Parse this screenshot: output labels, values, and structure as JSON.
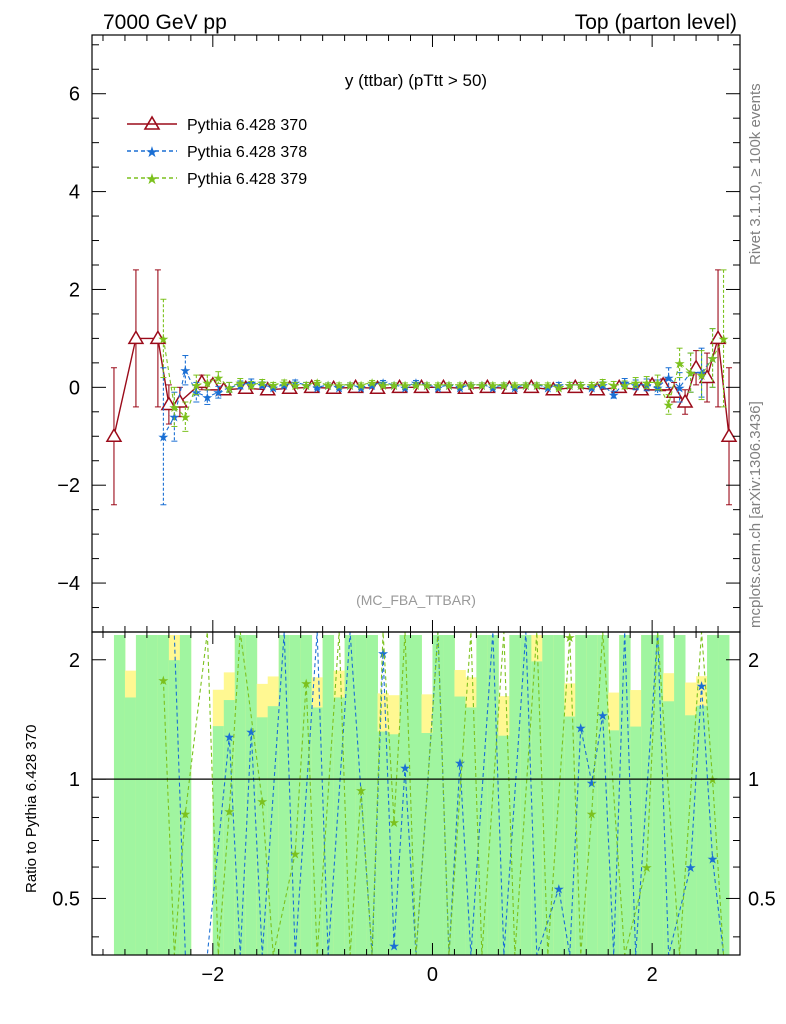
{
  "header": {
    "left": "7000 GeV pp",
    "right": "Top (parton level)"
  },
  "side": {
    "rivet": "Rivet 3.1.10, ≥ 100k events",
    "mcplots": "mcplots.cern.ch [arXiv:1306.3436]"
  },
  "chart_data": {
    "type": "line",
    "title": "y (ttbar) (pTtt > 50)",
    "watermark": "(MC_FBA_TTBAR)",
    "xlim": [
      -3.1,
      2.8
    ],
    "ylim": [
      -5,
      7.2
    ],
    "ratio_ylim": [
      0.36,
      2.35
    ],
    "ratio_ylabel": "Ratio to Pythia 6.428 370",
    "xticks": [
      -2,
      0,
      2
    ],
    "yticks": [
      -4,
      -2,
      0,
      2,
      4,
      6
    ],
    "ratio_yticks": [
      0.5,
      1,
      2
    ],
    "legend_position": "top-left",
    "colors": {
      "s370": "#9b0b1a",
      "s378": "#1a6fd4",
      "s379": "#7cc11e",
      "band_green": "#a0f5a0",
      "band_yellow": "#fff892"
    },
    "series": [
      {
        "name": "Pythia 6.428 370",
        "x": [
          -2.9,
          -2.7,
          -2.5,
          -2.4,
          -2.3,
          -2.1,
          -2.0,
          -1.9,
          -1.7,
          -1.5,
          -1.3,
          -1.1,
          -0.9,
          -0.7,
          -0.5,
          -0.3,
          -0.1,
          0.1,
          0.3,
          0.5,
          0.7,
          0.9,
          1.1,
          1.3,
          1.5,
          1.7,
          1.9,
          2.0,
          2.1,
          2.2,
          2.3,
          2.4,
          2.5,
          2.6,
          2.7
        ],
        "y": [
          -1.0,
          1.0,
          1.0,
          -0.35,
          -0.3,
          0.1,
          0.05,
          -0.05,
          -0.02,
          -0.05,
          -0.02,
          0.0,
          -0.02,
          0.0,
          -0.02,
          0.0,
          0.0,
          0.0,
          -0.02,
          0.0,
          -0.02,
          0.0,
          -0.05,
          0.0,
          -0.05,
          0.0,
          -0.05,
          0.05,
          0.05,
          -0.1,
          -0.3,
          0.4,
          0.2,
          1.0,
          -1.0
        ],
        "err": [
          1.4,
          1.4,
          1.4,
          0.4,
          0.3,
          0.15,
          0.1,
          0.08,
          0.05,
          0.05,
          0.05,
          0.05,
          0.04,
          0.04,
          0.04,
          0.04,
          0.04,
          0.04,
          0.04,
          0.04,
          0.04,
          0.04,
          0.05,
          0.05,
          0.05,
          0.06,
          0.08,
          0.1,
          0.12,
          0.2,
          0.25,
          0.35,
          0.5,
          1.4,
          1.4
        ]
      },
      {
        "name": "Pythia 6.428 378",
        "x": [
          -2.45,
          -2.35,
          -2.25,
          -2.15,
          -2.05,
          -1.95,
          -1.85,
          -1.75,
          -1.65,
          -1.55,
          -1.45,
          -1.35,
          -1.25,
          -1.15,
          -1.05,
          -0.95,
          -0.85,
          -0.75,
          -0.65,
          -0.55,
          -0.45,
          -0.35,
          -0.25,
          -0.15,
          -0.05,
          0.05,
          0.15,
          0.25,
          0.35,
          0.45,
          0.55,
          0.65,
          0.75,
          0.85,
          0.95,
          1.05,
          1.15,
          1.25,
          1.35,
          1.45,
          1.55,
          1.65,
          1.75,
          1.85,
          1.95,
          2.05,
          2.15,
          2.25,
          2.35,
          2.45,
          2.55
        ],
        "y": [
          -1.0,
          -0.6,
          0.35,
          -0.1,
          -0.2,
          -0.1,
          0.0,
          0.05,
          0.1,
          0.05,
          0.0,
          0.05,
          0.1,
          0.05,
          0.0,
          0.05,
          0.0,
          0.05,
          0.0,
          0.05,
          0.1,
          0.05,
          0.0,
          0.1,
          0.05,
          0.0,
          0.05,
          0.0,
          0.05,
          0.05,
          0.0,
          0.05,
          0.0,
          0.05,
          0.05,
          0.0,
          0.05,
          0.05,
          0.05,
          0.0,
          0.05,
          -0.15,
          0.1,
          0.05,
          0.05,
          0.0,
          0.2,
          0.0,
          0.3,
          0.3,
          0.6
        ],
        "err": [
          1.4,
          0.5,
          0.3,
          0.2,
          0.15,
          0.12,
          0.1,
          0.08,
          0.07,
          0.06,
          0.05,
          0.05,
          0.05,
          0.05,
          0.04,
          0.04,
          0.04,
          0.04,
          0.04,
          0.04,
          0.04,
          0.04,
          0.04,
          0.04,
          0.04,
          0.04,
          0.04,
          0.04,
          0.04,
          0.04,
          0.04,
          0.04,
          0.04,
          0.04,
          0.04,
          0.04,
          0.05,
          0.05,
          0.05,
          0.05,
          0.06,
          0.07,
          0.08,
          0.1,
          0.12,
          0.15,
          0.2,
          0.3,
          0.4,
          0.5,
          0.6
        ]
      },
      {
        "name": "Pythia 6.428 379",
        "x": [
          -2.45,
          -2.35,
          -2.25,
          -2.15,
          -2.05,
          -1.95,
          -1.85,
          -1.75,
          -1.65,
          -1.55,
          -1.45,
          -1.35,
          -1.25,
          -1.15,
          -1.05,
          -0.95,
          -0.85,
          -0.75,
          -0.65,
          -0.55,
          -0.45,
          -0.35,
          -0.25,
          -0.15,
          -0.05,
          0.05,
          0.15,
          0.25,
          0.35,
          0.45,
          0.55,
          0.65,
          0.75,
          0.85,
          0.95,
          1.05,
          1.15,
          1.25,
          1.35,
          1.45,
          1.55,
          1.65,
          1.75,
          1.85,
          1.95,
          2.05,
          2.15,
          2.25,
          2.35,
          2.45,
          2.55,
          2.65
        ],
        "y": [
          1.0,
          -0.4,
          -0.6,
          0.05,
          0.1,
          0.2,
          0.0,
          0.1,
          0.05,
          0.1,
          0.05,
          0.1,
          0.05,
          0.05,
          0.1,
          0.05,
          0.05,
          0.05,
          0.05,
          0.1,
          0.05,
          0.05,
          0.05,
          0.05,
          0.05,
          0.05,
          0.05,
          0.05,
          0.05,
          0.05,
          0.05,
          0.05,
          0.05,
          0.05,
          0.05,
          0.05,
          0.0,
          0.05,
          0.05,
          0.05,
          0.1,
          0.05,
          0.05,
          0.1,
          0.1,
          0.1,
          -0.35,
          0.5,
          0.3,
          0.25,
          0.6,
          1.0
        ],
        "err": [
          0.8,
          0.4,
          0.3,
          0.2,
          0.15,
          0.12,
          0.1,
          0.08,
          0.07,
          0.06,
          0.05,
          0.05,
          0.05,
          0.05,
          0.04,
          0.04,
          0.04,
          0.04,
          0.04,
          0.04,
          0.04,
          0.04,
          0.04,
          0.04,
          0.04,
          0.04,
          0.04,
          0.04,
          0.04,
          0.04,
          0.04,
          0.04,
          0.04,
          0.04,
          0.04,
          0.04,
          0.05,
          0.05,
          0.05,
          0.05,
          0.06,
          0.07,
          0.08,
          0.1,
          0.12,
          0.15,
          0.2,
          0.3,
          0.4,
          0.5,
          0.6,
          1.4
        ]
      }
    ],
    "ratio_378": [
      [
        -2.35,
        2.3
      ],
      [
        -2.25,
        0.2
      ],
      [
        -2.05,
        0.2
      ],
      [
        -1.85,
        1.28
      ],
      [
        -1.75,
        0.2
      ],
      [
        -1.65,
        1.32
      ],
      [
        -1.55,
        0.2
      ],
      [
        -1.35,
        3.0
      ],
      [
        -1.25,
        0.2
      ],
      [
        -1.05,
        3.0
      ],
      [
        -0.95,
        0.2
      ],
      [
        -0.75,
        3.0
      ],
      [
        -0.55,
        0.2
      ],
      [
        -0.45,
        2.08
      ],
      [
        -0.35,
        0.38
      ],
      [
        -0.25,
        1.07
      ],
      [
        -0.15,
        0.2
      ],
      [
        0.05,
        3.0
      ],
      [
        0.15,
        0.2
      ],
      [
        0.25,
        1.1
      ],
      [
        0.35,
        0.2
      ],
      [
        0.55,
        3.0
      ],
      [
        0.65,
        0.2
      ],
      [
        0.85,
        3.0
      ],
      [
        0.95,
        0.2
      ],
      [
        1.15,
        0.53
      ],
      [
        1.25,
        0.2
      ],
      [
        1.35,
        1.35
      ],
      [
        1.45,
        0.98
      ],
      [
        1.55,
        1.45
      ],
      [
        1.65,
        0.2
      ],
      [
        1.75,
        3.0
      ],
      [
        1.85,
        0.2
      ],
      [
        2.05,
        3.0
      ],
      [
        2.15,
        0.2
      ],
      [
        2.35,
        0.6
      ],
      [
        2.45,
        1.72
      ],
      [
        2.55,
        0.63
      ],
      [
        2.65,
        0.2
      ]
    ],
    "ratio_379": [
      [
        -2.45,
        1.78
      ],
      [
        -2.35,
        0.2
      ],
      [
        -2.25,
        0.82
      ],
      [
        -2.05,
        3.0
      ],
      [
        -1.95,
        0.2
      ],
      [
        -1.85,
        0.83
      ],
      [
        -1.75,
        3.0
      ],
      [
        -1.55,
        0.88
      ],
      [
        -1.45,
        0.2
      ],
      [
        -1.25,
        0.65
      ],
      [
        -1.15,
        1.75
      ],
      [
        -1.05,
        0.2
      ],
      [
        -0.85,
        3.0
      ],
      [
        -0.75,
        0.2
      ],
      [
        -0.65,
        0.94
      ],
      [
        -0.55,
        0.2
      ],
      [
        -0.45,
        3.0
      ],
      [
        -0.35,
        0.78
      ],
      [
        -0.25,
        3.0
      ],
      [
        -0.15,
        0.2
      ],
      [
        0.05,
        3.0
      ],
      [
        0.15,
        0.2
      ],
      [
        0.35,
        3.0
      ],
      [
        0.45,
        0.2
      ],
      [
        0.65,
        3.0
      ],
      [
        0.75,
        0.2
      ],
      [
        0.95,
        3.0
      ],
      [
        1.05,
        0.2
      ],
      [
        1.25,
        2.28
      ],
      [
        1.35,
        0.2
      ],
      [
        1.45,
        0.82
      ],
      [
        1.55,
        3.0
      ],
      [
        1.75,
        0.2
      ],
      [
        1.95,
        0.6
      ],
      [
        2.05,
        3.0
      ],
      [
        2.25,
        0.2
      ],
      [
        2.45,
        3.0
      ],
      [
        2.55,
        1.0
      ],
      [
        2.65,
        0.35
      ]
    ]
  }
}
